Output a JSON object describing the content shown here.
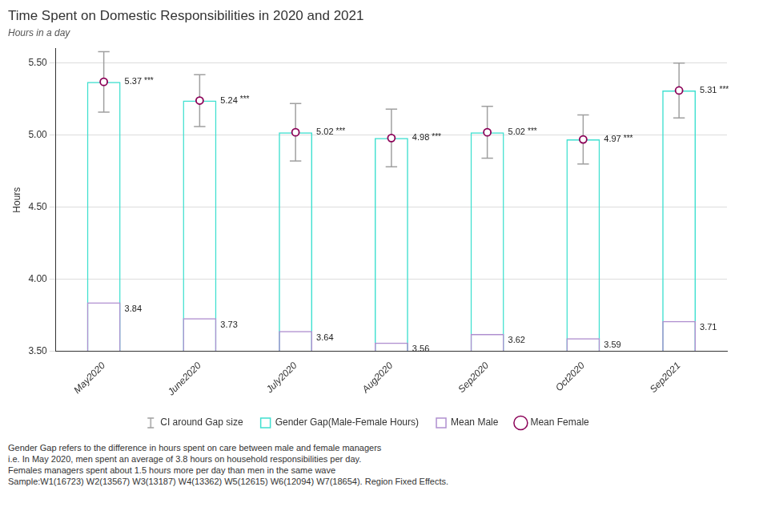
{
  "chart_data": {
    "type": "bar",
    "title": "Time Spent on Domestic Responsibilities in 2020 and 2021",
    "subtitle": "Hours in a day",
    "ylabel": "Hours",
    "footnote": "Gender Gap refers to the difference in hours spent on care between male and female managers\ni.e. In May 2020, men spent an average of 3.8 hours on household responsibilities per day.\nFemales managers spent about 1.5 hours more per day than men in the same wave\nSample:W1(16723)  W2(13567) W3(13187) W4(13362) W5(12615) W6(12094) W7(18654). Region Fixed Effects.",
    "categories": [
      "May2020",
      "June2020",
      "July2020",
      "Aug2020",
      "Sep2020",
      "Oct2020",
      "Sep2021"
    ],
    "series": [
      {
        "name": "CI around Gap size",
        "type": "errorbar",
        "color": "#a0a0a0",
        "lower": [
          5.16,
          5.06,
          4.82,
          4.78,
          4.84,
          4.8,
          5.12
        ],
        "upper": [
          5.58,
          5.42,
          5.22,
          5.18,
          5.2,
          5.14,
          5.5
        ]
      },
      {
        "name": "Gender Gap(Male-Female Hours)",
        "type": "bar",
        "color": "#40e0d0",
        "values": [
          5.37,
          5.24,
          5.02,
          4.98,
          5.02,
          4.97,
          5.31
        ]
      },
      {
        "name": "Mean Male",
        "type": "bar",
        "color": "#b090d0",
        "values": [
          3.84,
          3.73,
          3.64,
          3.56,
          3.62,
          3.59,
          3.71
        ],
        "data_labels": true
      },
      {
        "name": "Mean Female",
        "type": "scatter",
        "marker": "circle",
        "color": "#8b0057",
        "values": [
          5.37,
          5.24,
          5.02,
          4.98,
          5.02,
          4.97,
          5.31
        ],
        "data_labels": true,
        "stars": [
          "***",
          "***",
          "***",
          "***",
          "***",
          "***",
          "***"
        ]
      }
    ],
    "ylim": [
      3.5,
      5.6
    ],
    "yticks": [
      {
        "value": 3.5,
        "label": "3.50"
      },
      {
        "value": 4.0,
        "label": "4.00"
      },
      {
        "value": 4.5,
        "label": "4.50"
      },
      {
        "value": 5.0,
        "label": "5.00"
      },
      {
        "value": 5.5,
        "label": "5.50"
      }
    ],
    "grid": true,
    "legend": "bottom"
  }
}
